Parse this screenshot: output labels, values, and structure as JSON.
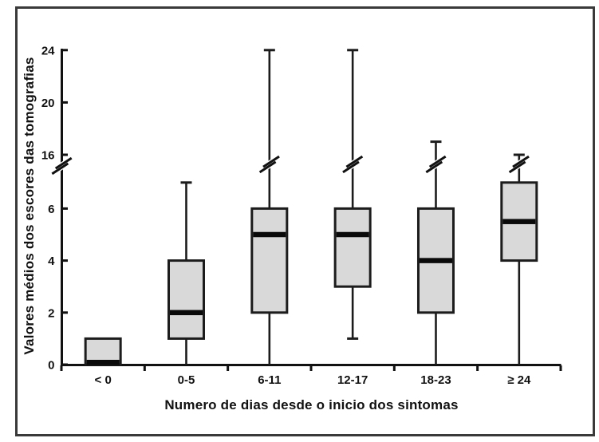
{
  "chart_data": {
    "type": "boxplot",
    "title": "",
    "xlabel": "Numero de dias desde o inicio dos sintomas",
    "ylabel": "Valores médios dos escores das tomografias",
    "categories": [
      "< 0",
      "0-5",
      "6-11",
      "12-17",
      "18-23",
      "≥ 24"
    ],
    "boxes": [
      {
        "category": "< 0",
        "whisker_low": null,
        "q1": 0,
        "median": 0,
        "q3": 1,
        "whisker_high": null,
        "whisker_break": false
      },
      {
        "category": "0-5",
        "whisker_low": 0,
        "q1": 1,
        "median": 2,
        "q3": 4,
        "whisker_high": 7,
        "whisker_break": false
      },
      {
        "category": "6-11",
        "whisker_low": 0,
        "q1": 2,
        "median": 5,
        "q3": 6,
        "whisker_high": 24,
        "whisker_break": true
      },
      {
        "category": "12-17",
        "whisker_low": 1,
        "q1": 3,
        "median": 5,
        "q3": 6,
        "whisker_high": 24,
        "whisker_break": true
      },
      {
        "category": "18-23",
        "whisker_low": 0,
        "q1": 2,
        "median": 4,
        "q3": 6,
        "whisker_high": 17,
        "whisker_break": true
      },
      {
        "category": "≥ 24",
        "whisker_low": 0,
        "q1": 4,
        "median": 5.5,
        "q3": 7,
        "whisker_high": 16,
        "whisker_break": true
      }
    ],
    "y_axis": {
      "lower_ticks": [
        0,
        2,
        4,
        6
      ],
      "upper_ticks": [
        16,
        20,
        24
      ],
      "axis_break": true,
      "ylim_lower": [
        0,
        7
      ],
      "ylim_upper": [
        16,
        24
      ]
    },
    "grid": false,
    "legend": "none",
    "colors": {
      "box_fill": "#d9d9d9",
      "box_stroke": "#1c1c1c",
      "median": "#0a0a0a",
      "axis": "#111111",
      "text": "#111111",
      "frame": "#3a3a3a",
      "background": "#ffffff"
    }
  }
}
